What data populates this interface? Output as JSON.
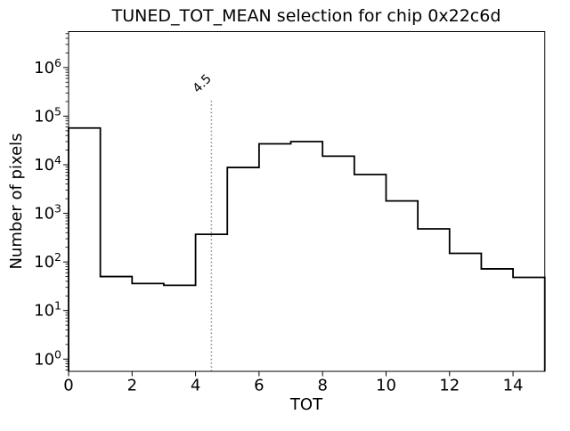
{
  "chart_data": {
    "type": "bar",
    "subtype": "step_histogram",
    "title": "TUNED_TOT_MEAN selection for chip 0x22c6d",
    "xlabel": "TOT",
    "ylabel": "Number of pixels",
    "yscale": "log",
    "xlim": [
      0,
      15
    ],
    "ylim": [
      0.56,
      5500000
    ],
    "xticks": [
      0,
      2,
      4,
      6,
      8,
      10,
      12,
      14
    ],
    "ytick_exponents": [
      0,
      1,
      2,
      3,
      4,
      5,
      6
    ],
    "bin_edges": [
      0,
      1,
      2,
      3,
      4,
      5,
      6,
      7,
      8,
      9,
      10,
      11,
      12,
      13,
      14,
      15
    ],
    "values": [
      57000,
      50,
      36,
      33,
      370,
      8800,
      27000,
      30000,
      15000,
      6300,
      1800,
      480,
      150,
      72,
      48
    ],
    "grid": false,
    "legend": null,
    "line_color": "#000000",
    "annotation_line": {
      "x": 4.5,
      "label": "4.5",
      "color": "#8a8a8a",
      "linestyle": "dotted"
    }
  }
}
